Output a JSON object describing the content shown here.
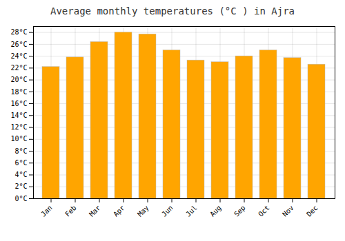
{
  "chart_data": {
    "type": "bar",
    "title": "Average monthly temperatures (°C ) in Ajra",
    "categories": [
      "Jan",
      "Feb",
      "Mar",
      "Apr",
      "May",
      "Jun",
      "Jul",
      "Aug",
      "Sep",
      "Oct",
      "Nov",
      "Dec"
    ],
    "values": [
      22.2,
      23.8,
      26.4,
      28.0,
      27.7,
      25.0,
      23.3,
      23.0,
      24.0,
      25.0,
      23.7,
      22.6
    ],
    "color": "#FFA500",
    "ylim": [
      0,
      29
    ],
    "yticks": [
      {
        "value": 0,
        "label": "0°C"
      },
      {
        "value": 2,
        "label": "2°C"
      },
      {
        "value": 4,
        "label": "4°C"
      },
      {
        "value": 6,
        "label": "6°C"
      },
      {
        "value": 8,
        "label": "8°C"
      },
      {
        "value": 10,
        "label": "10°C"
      },
      {
        "value": 12,
        "label": "12°C"
      },
      {
        "value": 14,
        "label": "14°C"
      },
      {
        "value": 16,
        "label": "16°C"
      },
      {
        "value": 18,
        "label": "18°C"
      },
      {
        "value": 20,
        "label": "20°C"
      },
      {
        "value": 22,
        "label": "22°C"
      },
      {
        "value": 24,
        "label": "24°C"
      },
      {
        "value": 26,
        "label": "26°C"
      },
      {
        "value": 28,
        "label": "28°C"
      }
    ],
    "grid": true
  }
}
